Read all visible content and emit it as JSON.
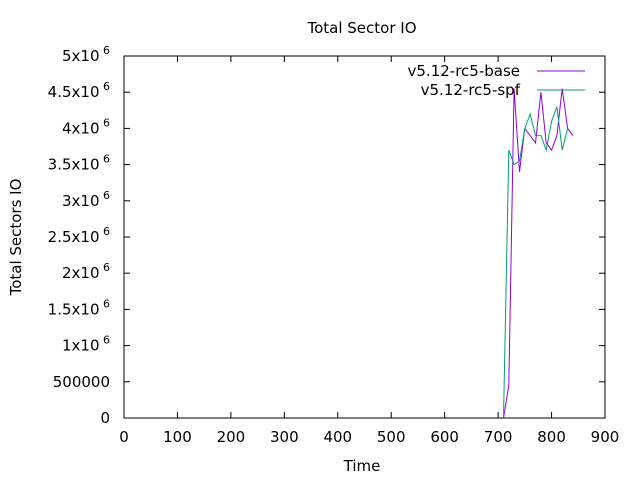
{
  "chart_data": {
    "type": "line",
    "title": "Total Sector IO",
    "xlabel": "Time",
    "ylabel": "Total Sectors IO",
    "xlim": [
      0,
      900
    ],
    "ylim": [
      0,
      5000000
    ],
    "x_ticks": [
      {
        "value": 0,
        "label": "0"
      },
      {
        "value": 100,
        "label": "100"
      },
      {
        "value": 200,
        "label": "200"
      },
      {
        "value": 300,
        "label": "300"
      },
      {
        "value": 400,
        "label": "400"
      },
      {
        "value": 500,
        "label": "500"
      },
      {
        "value": 600,
        "label": "600"
      },
      {
        "value": 700,
        "label": "700"
      },
      {
        "value": 800,
        "label": "800"
      },
      {
        "value": 900,
        "label": "900"
      }
    ],
    "y_ticks": [
      {
        "value": 0,
        "base": "0",
        "exp": ""
      },
      {
        "value": 500000,
        "base": "500000",
        "exp": ""
      },
      {
        "value": 1000000,
        "base": "1x10",
        "exp": "6"
      },
      {
        "value": 1500000,
        "base": "1.5x10",
        "exp": "6"
      },
      {
        "value": 2000000,
        "base": "2x10",
        "exp": "6"
      },
      {
        "value": 2500000,
        "base": "2.5x10",
        "exp": "6"
      },
      {
        "value": 3000000,
        "base": "3x10",
        "exp": "6"
      },
      {
        "value": 3500000,
        "base": "3.5x10",
        "exp": "6"
      },
      {
        "value": 4000000,
        "base": "4x10",
        "exp": "6"
      },
      {
        "value": 4500000,
        "base": "4.5x10",
        "exp": "6"
      },
      {
        "value": 5000000,
        "base": "5x10",
        "exp": "6"
      }
    ],
    "legend_position": "top-right",
    "grid": false,
    "series": [
      {
        "name": "v5.12-rc5-base",
        "color": "#9400d3",
        "x": [
          710,
          720,
          730,
          740,
          750,
          760,
          770,
          780,
          790,
          800,
          810,
          820,
          830,
          840
        ],
        "y": [
          0,
          450000,
          4550000,
          3400000,
          4000000,
          3900000,
          3800000,
          4500000,
          3800000,
          3700000,
          3900000,
          4550000,
          4000000,
          3900000
        ]
      },
      {
        "name": "v5.12-rc5-spf",
        "color": "#009e73",
        "x": [
          710,
          720,
          730,
          740,
          750,
          760,
          770,
          780,
          790,
          800,
          810,
          820,
          830
        ],
        "y": [
          0,
          3700000,
          3500000,
          3550000,
          4000000,
          4200000,
          3900000,
          3900000,
          3700000,
          4100000,
          4300000,
          3700000,
          4000000
        ]
      }
    ]
  }
}
